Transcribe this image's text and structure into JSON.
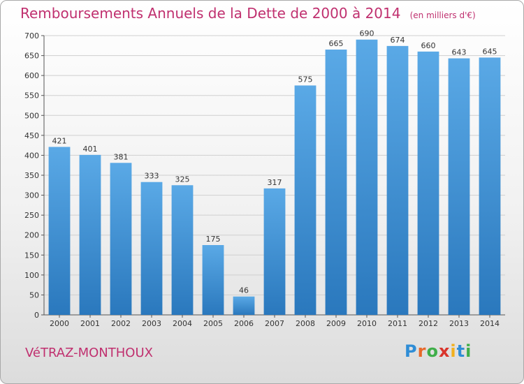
{
  "header": {
    "title": "Remboursements Annuels de la Dette de 2000 à 2014",
    "unit": "(en milliers d'€)"
  },
  "footer": {
    "town": "VéTRAZ-MONTHOUX",
    "logo": {
      "letters": [
        "P",
        "r",
        "o",
        "x",
        "i",
        "t",
        "i"
      ],
      "colors": [
        "#2f8dd6",
        "#e8692a",
        "#3fae49",
        "#d9342b",
        "#f2b01e",
        "#2f8dd6",
        "#3fae49"
      ]
    }
  },
  "colors": {
    "bar": "#3d97de",
    "bar_dark": "#2a78bd",
    "grid": "#cfcfcf",
    "title": "#c0306f"
  },
  "chart_data": {
    "type": "bar",
    "title": "Remboursements Annuels de la Dette de 2000 à 2014",
    "xlabel": "",
    "ylabel": "",
    "categories": [
      "2000",
      "2001",
      "2002",
      "2003",
      "2004",
      "2005",
      "2006",
      "2007",
      "2008",
      "2009",
      "2010",
      "2011",
      "2012",
      "2013",
      "2014"
    ],
    "values": [
      421,
      401,
      381,
      333,
      325,
      175,
      46,
      317,
      575,
      665,
      690,
      674,
      660,
      643,
      645
    ],
    "ylim": [
      0,
      700
    ],
    "yticks": [
      0,
      50,
      100,
      150,
      200,
      250,
      300,
      350,
      400,
      450,
      500,
      550,
      600,
      650,
      700
    ],
    "grid": true,
    "legend": "none"
  }
}
